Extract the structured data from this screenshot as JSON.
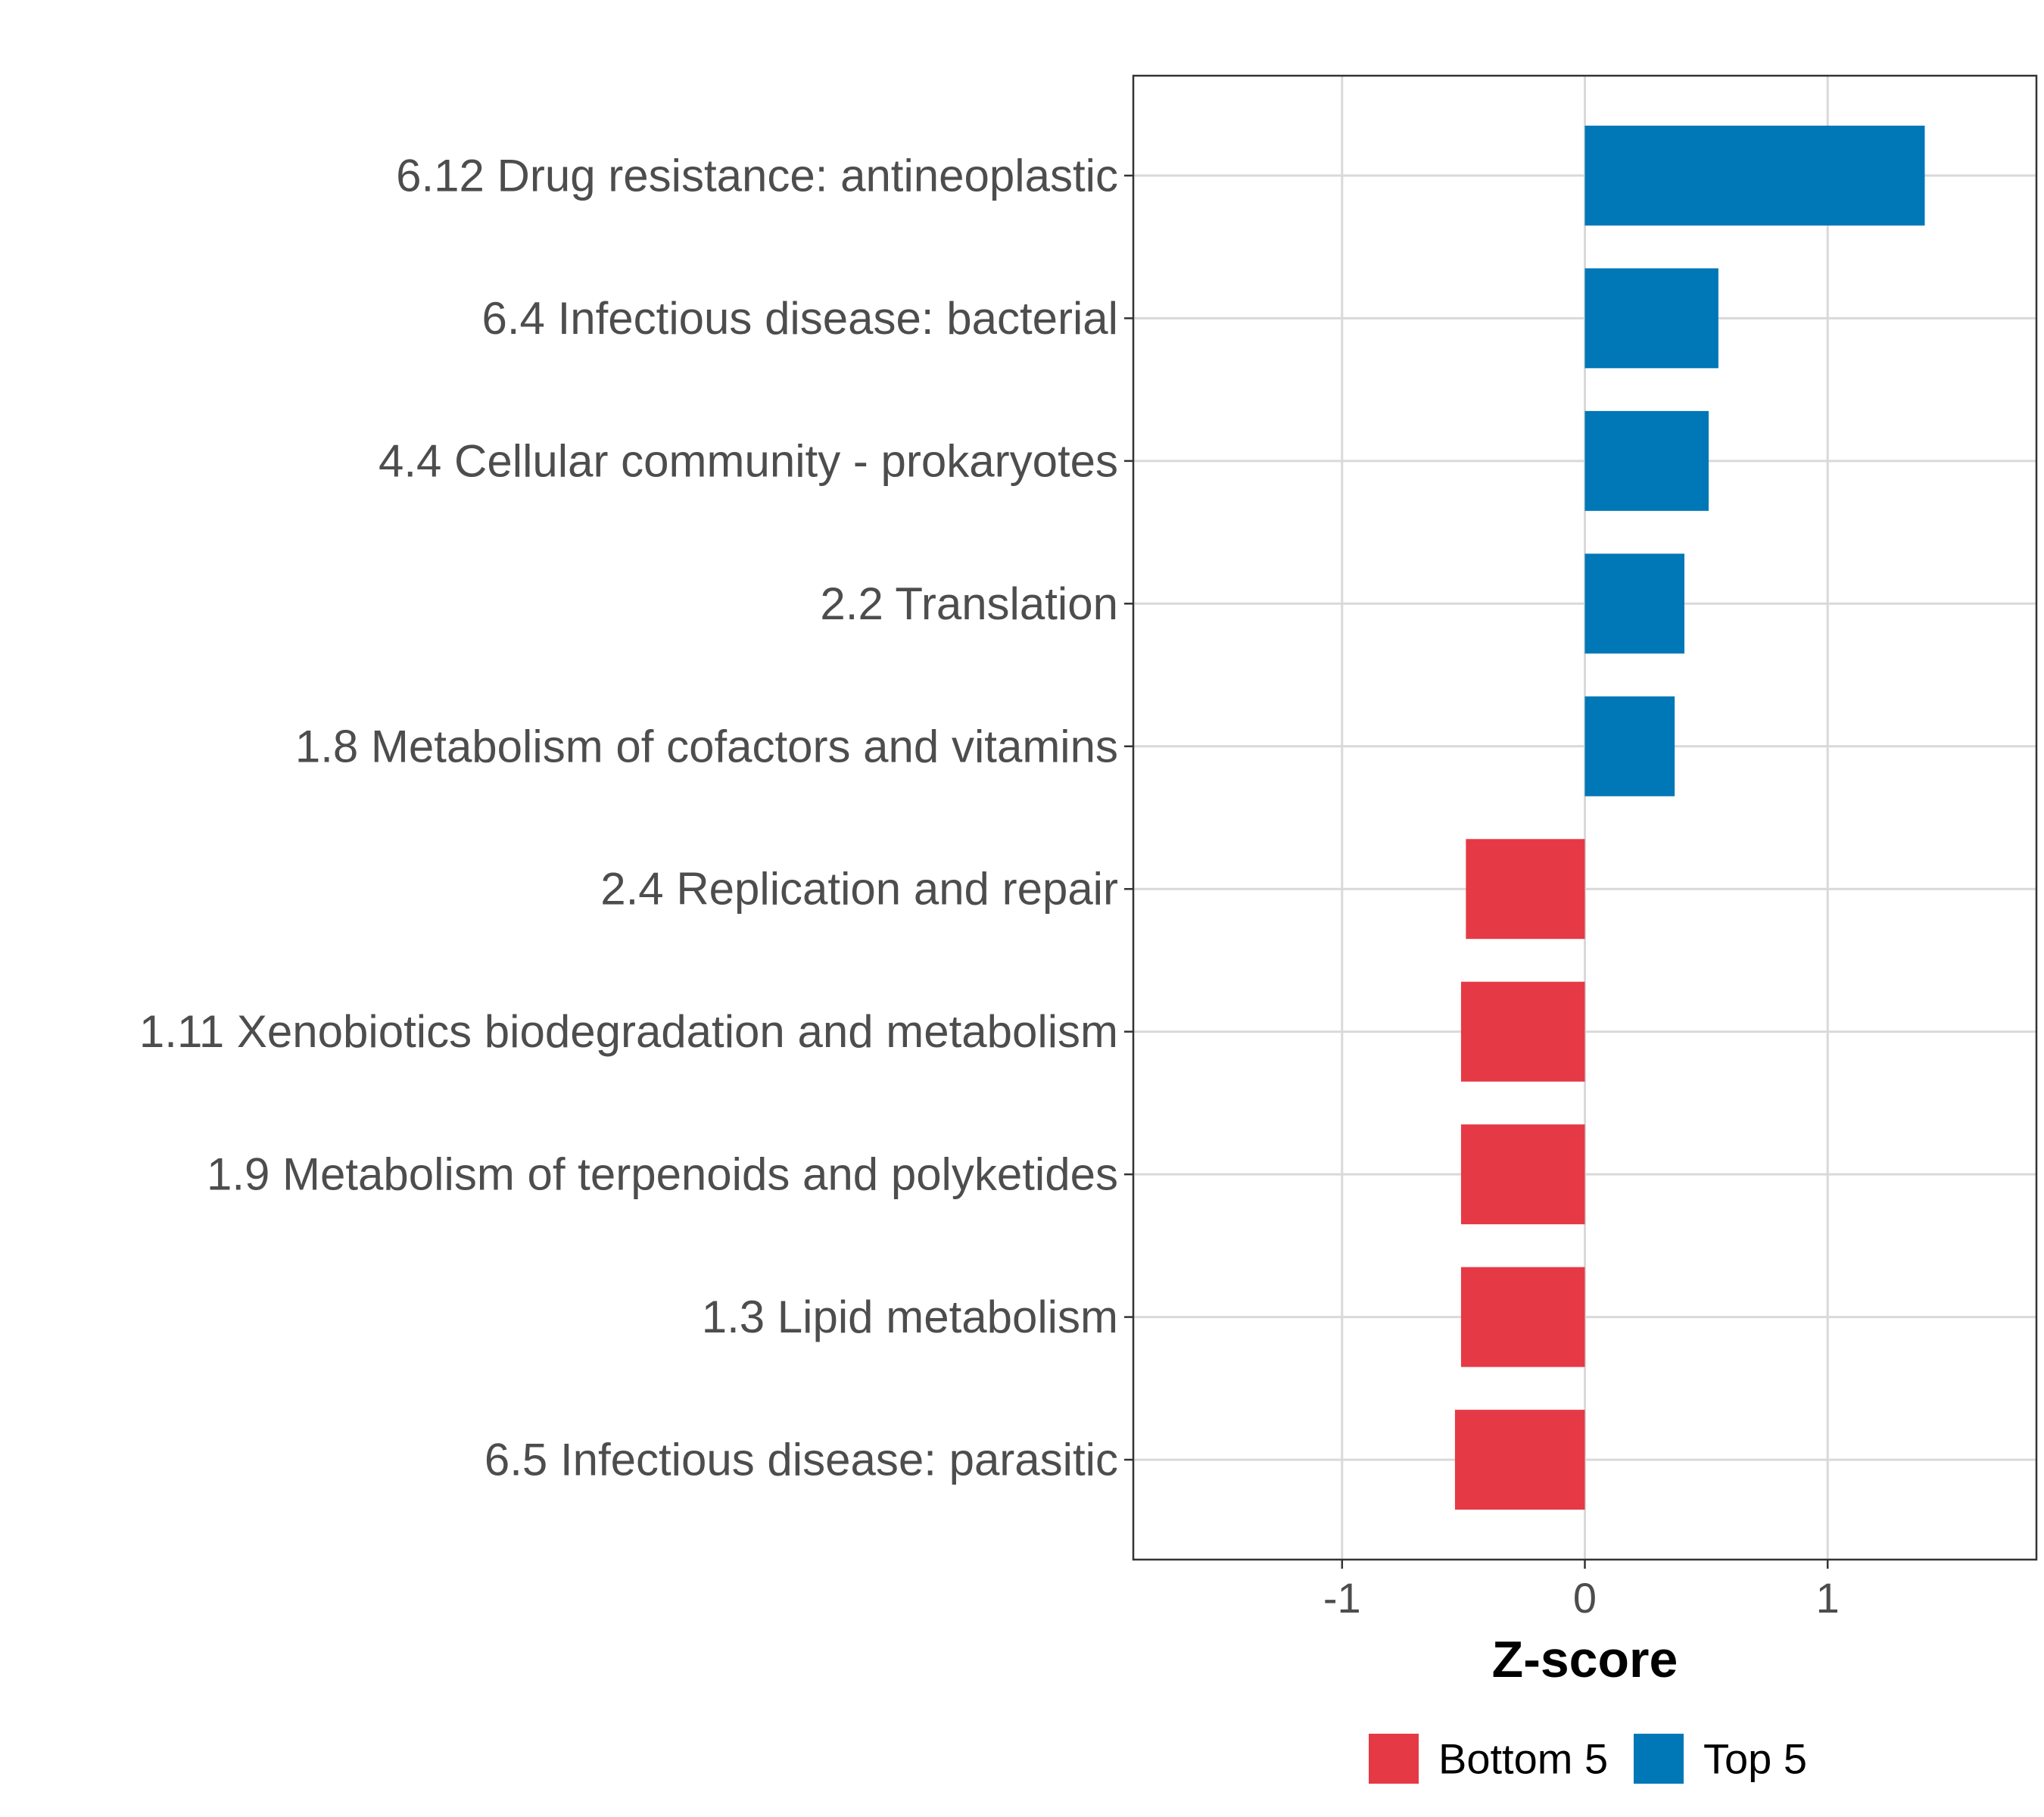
{
  "chart_data": {
    "type": "bar",
    "orientation": "horizontal",
    "title": "",
    "xlabel": "Z-score",
    "ylabel": "",
    "xlim": [
      -1.86,
      1.86
    ],
    "xticks": [
      -1,
      0,
      1
    ],
    "xtick_labels": [
      "-1",
      "0",
      "1"
    ],
    "grid": true,
    "legend_position": "bottom",
    "groups": [
      {
        "name": "Bottom 5",
        "color": "#E63946"
      },
      {
        "name": "Top 5",
        "color": "#0077B6"
      }
    ],
    "categories": [
      "6.12 Drug resistance: antineoplastic",
      "6.4 Infectious disease: bacterial",
      "4.4 Cellular community - prokaryotes",
      "2.2 Translation",
      "1.8 Metabolism of cofactors and vitamins",
      "2.4 Replication and repair",
      "1.11 Xenobiotics biodegradation and metabolism",
      "1.9 Metabolism of terpenoids and polyketides",
      "1.3 Lipid metabolism",
      "6.5 Infectious disease: parasitic"
    ],
    "values": [
      1.4,
      0.55,
      0.51,
      0.41,
      0.37,
      -0.49,
      -0.51,
      -0.51,
      -0.51,
      -0.535
    ],
    "value_groups": [
      "Top 5",
      "Top 5",
      "Top 5",
      "Top 5",
      "Top 5",
      "Bottom 5",
      "Bottom 5",
      "Bottom 5",
      "Bottom 5",
      "Bottom 5"
    ]
  }
}
